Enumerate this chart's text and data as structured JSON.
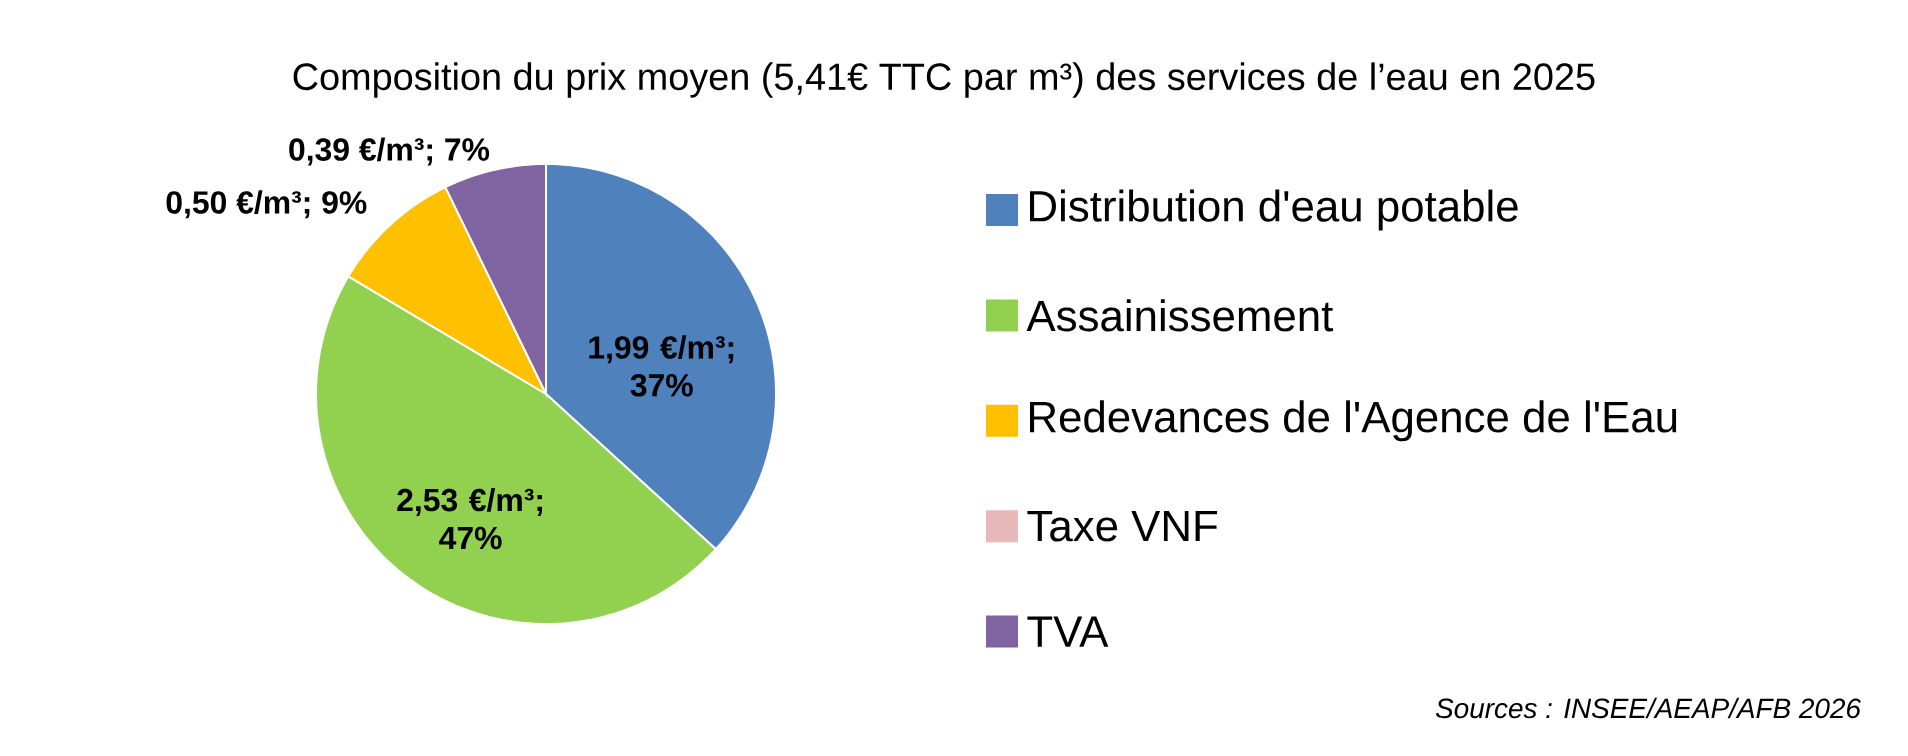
{
  "chart_data": {
    "type": "pie",
    "title": "Composition du prix moyen (5,41€ TTC par m³) des services de l’eau en 2025",
    "categories": [
      "Distribution d'eau potable",
      "Assainissement",
      "Redevances de l'Agence de l'Eau",
      "Taxe VNF",
      "TVA"
    ],
    "values": [
      1.99,
      2.53,
      0.5,
      0,
      0.39
    ],
    "value_labels": [
      "1,99 €/m³; 37%",
      "2,53 €/m³; 47%",
      "0,50 €/m³; 9%",
      null,
      "0,39 €/m³; 7%"
    ],
    "colors": [
      "#4f81bd",
      "#92d050",
      "#ffc000",
      "#e6b9b8",
      "#8064a2"
    ],
    "legend": "right",
    "annotations": [
      "Sources : INSEE/AEAP/AFB 2026"
    ]
  }
}
